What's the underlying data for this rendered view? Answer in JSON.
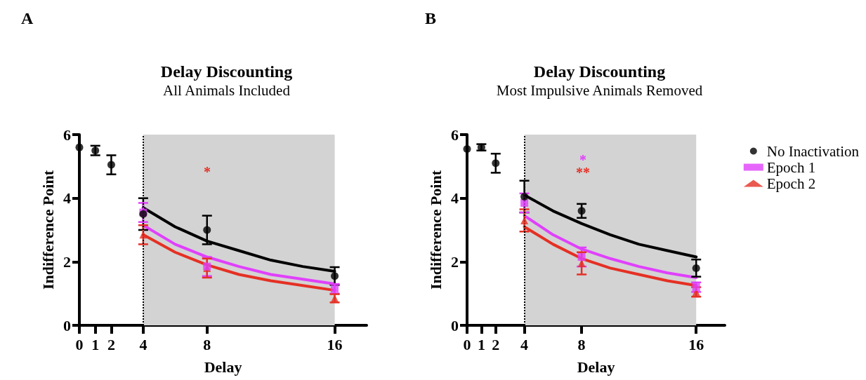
{
  "chart_data": [
    {
      "type": "scatter",
      "title": "Delay Discounting",
      "subtitle": "All Animals Included",
      "xlabel": "Delay",
      "ylabel": "Indifference Point",
      "annotations": [
        "A",
        "*"
      ],
      "xlim": [
        0,
        18
      ],
      "xticks": [
        0,
        1,
        2,
        4,
        8,
        16
      ],
      "ylim": [
        0,
        6
      ],
      "yticks": [
        0,
        2,
        4,
        6
      ],
      "grid": false,
      "legend": false,
      "bands": [
        {
          "axis": "x",
          "from": 4,
          "to": 16,
          "color": "#d3d3d3"
        }
      ],
      "ref_lines": [
        {
          "axis": "x",
          "value": 4,
          "color": "#000000",
          "line_style": "dotted"
        }
      ],
      "series": [
        {
          "type": "scatter",
          "color": "#000000",
          "marker": "circle",
          "x": [
            0,
            1,
            2,
            4,
            8,
            16
          ],
          "values": [
            5.6,
            5.5,
            5.05,
            3.5,
            3.0,
            1.55
          ],
          "errors": [
            null,
            0.15,
            0.3,
            0.5,
            0.45,
            0.28
          ]
        },
        {
          "type": "scatter",
          "color": "#e040fb",
          "marker": "square",
          "x": [
            4,
            8,
            16
          ],
          "values": [
            3.55,
            1.85,
            1.15
          ],
          "errors": [
            0.3,
            0.3,
            0.15
          ]
        },
        {
          "type": "scatter",
          "color": "#e53024",
          "marker": "triangle",
          "x": [
            4,
            8,
            16
          ],
          "values": [
            2.85,
            1.8,
            0.85
          ],
          "errors": [
            0.3,
            0.3,
            0.13
          ]
        },
        {
          "type": "line",
          "color": "#000000",
          "marker": "none",
          "x": [
            4,
            6,
            8,
            10,
            12,
            14,
            16
          ],
          "values": [
            3.7,
            3.1,
            2.65,
            2.35,
            2.05,
            1.85,
            1.7
          ]
        },
        {
          "type": "line",
          "color": "#e040fb",
          "marker": "none",
          "x": [
            4,
            6,
            8,
            10,
            12,
            14,
            16
          ],
          "values": [
            3.15,
            2.55,
            2.15,
            1.85,
            1.6,
            1.45,
            1.3
          ]
        },
        {
          "type": "line",
          "color": "#e53024",
          "marker": "none",
          "x": [
            4,
            6,
            8,
            10,
            12,
            14,
            16
          ],
          "values": [
            2.85,
            2.3,
            1.9,
            1.6,
            1.4,
            1.25,
            1.1
          ]
        }
      ]
    },
    {
      "type": "scatter",
      "title": "Delay Discounting",
      "subtitle": "Most Impulsive Animals Removed",
      "xlabel": "Delay",
      "ylabel": "Indifference Point",
      "annotations": [
        "B",
        "*",
        "**"
      ],
      "xlim": [
        0,
        18
      ],
      "xticks": [
        0,
        1,
        2,
        4,
        8,
        16
      ],
      "ylim": [
        0,
        6
      ],
      "yticks": [
        0,
        2,
        4,
        6
      ],
      "grid": false,
      "legend": "right",
      "bands": [
        {
          "axis": "x",
          "from": 4,
          "to": 16,
          "color": "#d3d3d3"
        }
      ],
      "ref_lines": [
        {
          "axis": "x",
          "value": 4,
          "color": "#000000",
          "line_style": "dotted"
        }
      ],
      "series": [
        {
          "type": "scatter",
          "name": "No Inactivation",
          "color": "#000000",
          "marker": "circle",
          "x": [
            0,
            1,
            2,
            4,
            8,
            16
          ],
          "values": [
            5.55,
            5.6,
            5.1,
            4.05,
            3.6,
            1.8
          ],
          "errors": [
            null,
            0.1,
            0.3,
            0.5,
            0.22,
            0.27
          ]
        },
        {
          "type": "scatter",
          "name": "Epoch 1",
          "color": "#e040fb",
          "marker": "square",
          "x": [
            4,
            8,
            16
          ],
          "values": [
            3.85,
            2.15,
            1.2
          ],
          "errors": [
            0.3,
            0.3,
            0.15
          ]
        },
        {
          "type": "scatter",
          "name": "Epoch 2",
          "color": "#e53024",
          "marker": "triangle",
          "x": [
            4,
            8,
            16
          ],
          "values": [
            3.3,
            1.95,
            1.05
          ],
          "errors": [
            0.35,
            0.35,
            0.15
          ]
        },
        {
          "type": "line",
          "color": "#000000",
          "marker": "none",
          "x": [
            4,
            6,
            8,
            10,
            12,
            14,
            16
          ],
          "values": [
            4.1,
            3.6,
            3.2,
            2.85,
            2.55,
            2.35,
            2.15
          ]
        },
        {
          "type": "line",
          "color": "#e040fb",
          "marker": "none",
          "x": [
            4,
            6,
            8,
            10,
            12,
            14,
            16
          ],
          "values": [
            3.45,
            2.85,
            2.4,
            2.1,
            1.85,
            1.65,
            1.5
          ]
        },
        {
          "type": "line",
          "color": "#e53024",
          "marker": "none",
          "x": [
            4,
            6,
            8,
            10,
            12,
            14,
            16
          ],
          "values": [
            3.1,
            2.55,
            2.1,
            1.8,
            1.6,
            1.4,
            1.25
          ]
        }
      ]
    }
  ]
}
